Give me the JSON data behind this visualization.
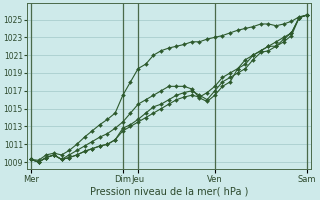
{
  "xlabel": "Pression niveau de la mer( hPa )",
  "background_color": "#ceeaea",
  "grid_color": "#aacece",
  "line_color": "#2d5a2d",
  "dark_line_color": "#3a5a3a",
  "ylim": [
    1008.2,
    1026.8
  ],
  "yticks": [
    1009,
    1011,
    1013,
    1015,
    1017,
    1019,
    1021,
    1023,
    1025
  ],
  "xtick_labels": [
    "Mer",
    "Dim",
    "Jeu",
    "Ven",
    "Sam"
  ],
  "xtick_positions": [
    0,
    12,
    14,
    24,
    36
  ],
  "vline_positions": [
    0,
    12,
    14,
    24,
    36
  ],
  "total_points": 37,
  "series1": [
    1009.3,
    1009.0,
    1009.5,
    1009.8,
    1009.3,
    1009.5,
    1009.8,
    1010.2,
    1010.5,
    1010.8,
    1011.0,
    1011.5,
    1012.5,
    1013.0,
    1013.5,
    1014.0,
    1014.5,
    1015.0,
    1015.5,
    1016.0,
    1016.3,
    1016.5,
    1016.3,
    1016.8,
    1017.5,
    1018.5,
    1019.0,
    1019.5,
    1020.5,
    1021.0,
    1021.5,
    1022.0,
    1022.5,
    1023.0,
    1023.5,
    1025.2,
    1025.5
  ],
  "series2": [
    1009.3,
    1009.0,
    1009.5,
    1009.8,
    1009.3,
    1009.5,
    1009.8,
    1010.2,
    1010.5,
    1010.8,
    1011.0,
    1011.5,
    1012.8,
    1013.2,
    1013.8,
    1014.5,
    1015.2,
    1015.5,
    1016.0,
    1016.5,
    1016.8,
    1017.0,
    1016.5,
    1016.0,
    1017.0,
    1018.0,
    1018.5,
    1019.0,
    1019.5,
    1020.5,
    1021.3,
    1021.5,
    1022.0,
    1022.8,
    1023.5,
    1025.2,
    1025.5
  ],
  "series3": [
    1009.3,
    1009.0,
    1009.5,
    1009.8,
    1009.3,
    1009.8,
    1010.3,
    1010.8,
    1011.3,
    1011.8,
    1012.2,
    1012.8,
    1013.5,
    1014.5,
    1015.5,
    1016.0,
    1016.5,
    1017.0,
    1017.5,
    1017.5,
    1017.5,
    1017.2,
    1016.2,
    1015.8,
    1016.5,
    1017.5,
    1018.0,
    1019.5,
    1020.0,
    1021.0,
    1021.5,
    1022.0,
    1022.0,
    1022.5,
    1023.2,
    1025.2,
    1025.5
  ],
  "series4": [
    1009.3,
    1009.2,
    1009.8,
    1010.0,
    1009.8,
    1010.3,
    1011.0,
    1011.8,
    1012.5,
    1013.2,
    1013.8,
    1014.5,
    1016.5,
    1018.0,
    1019.5,
    1020.0,
    1021.0,
    1021.5,
    1021.8,
    1022.0,
    1022.2,
    1022.5,
    1022.5,
    1022.8,
    1023.0,
    1023.2,
    1023.5,
    1023.8,
    1024.0,
    1024.2,
    1024.5,
    1024.5,
    1024.3,
    1024.5,
    1024.8,
    1025.3,
    1025.5
  ]
}
